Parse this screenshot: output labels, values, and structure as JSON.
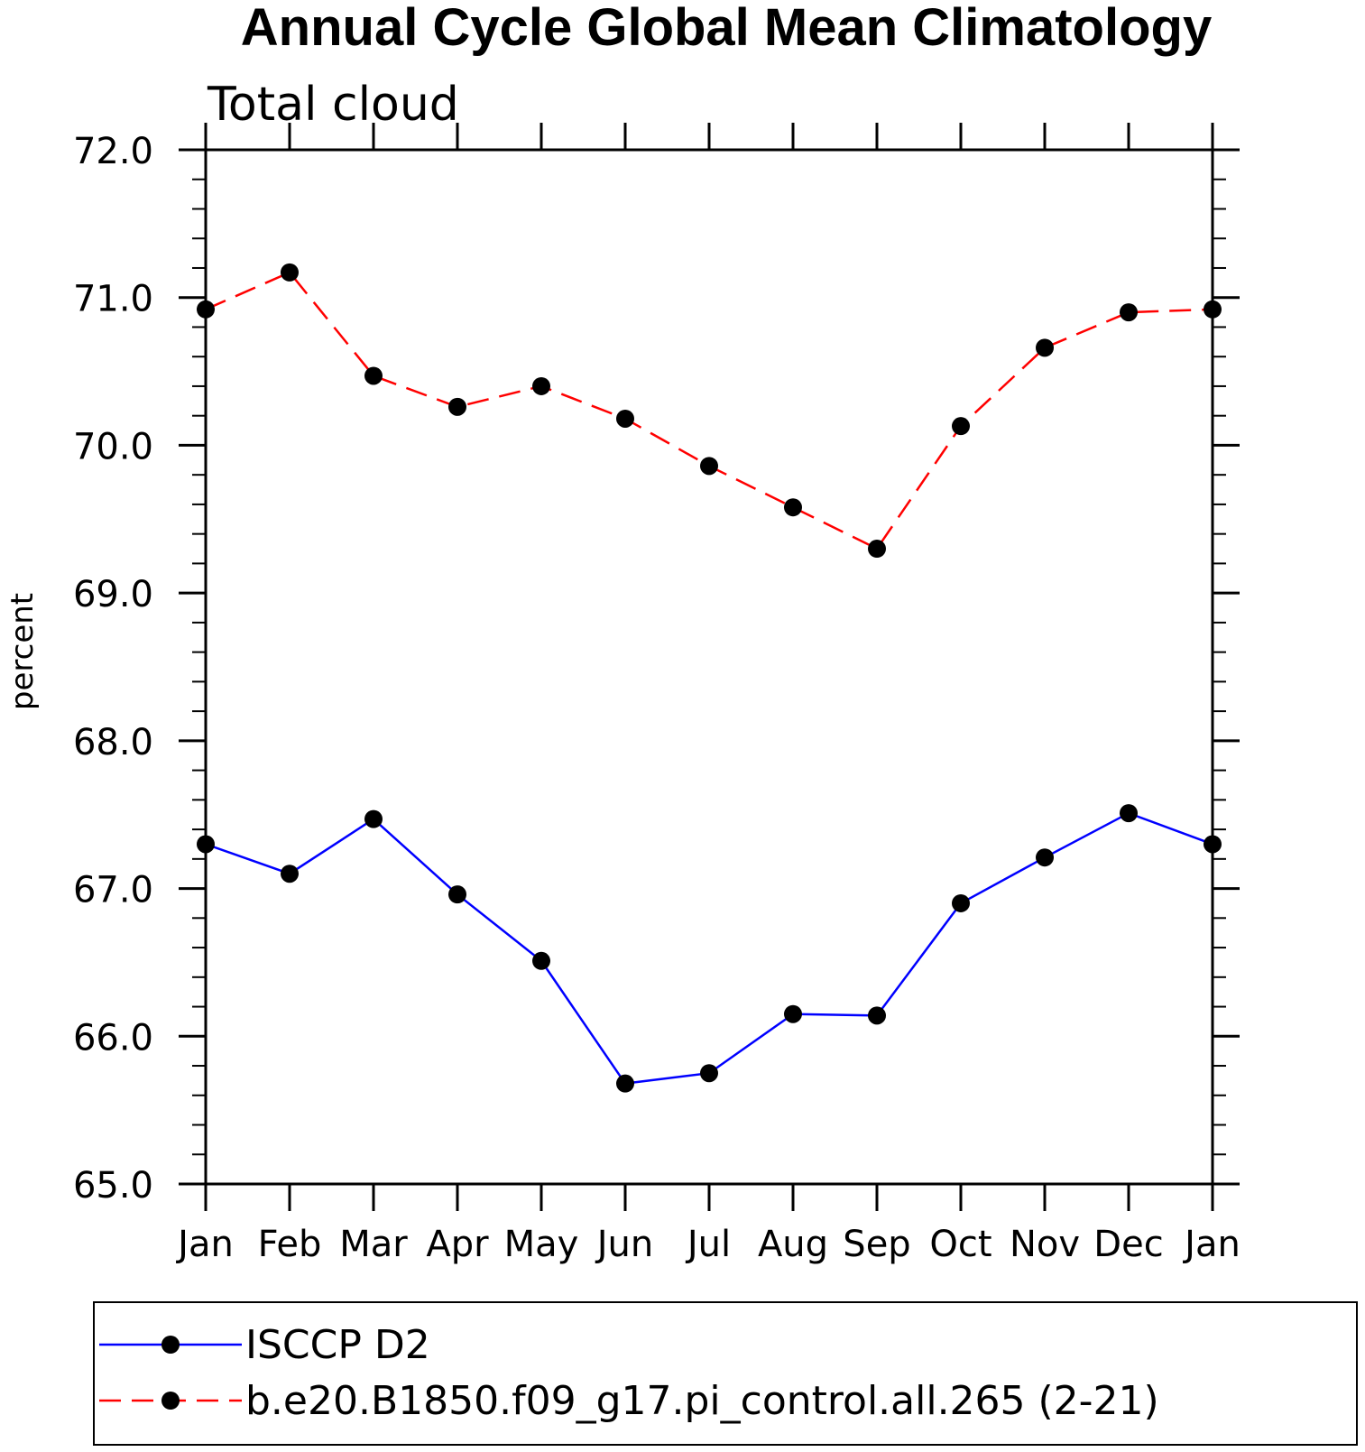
{
  "chart_data": {
    "type": "line",
    "title": "Annual Cycle Global Mean Climatology",
    "subtitle": "Total cloud",
    "xlabel": "",
    "ylabel": "percent",
    "categories": [
      "Jan",
      "Feb",
      "Mar",
      "Apr",
      "May",
      "Jun",
      "Jul",
      "Aug",
      "Sep",
      "Oct",
      "Nov",
      "Dec",
      "Jan"
    ],
    "ylim": [
      65.0,
      72.0
    ],
    "yticks": [
      "65.0",
      "66.0",
      "67.0",
      "68.0",
      "69.0",
      "70.0",
      "71.0",
      "72.0"
    ],
    "grid": false,
    "legend_position": "bottom",
    "series": [
      {
        "name": "ISCCP D2",
        "color": "#0000ff",
        "line_style": "solid",
        "values": [
          67.3,
          67.1,
          67.47,
          66.96,
          66.51,
          65.68,
          65.75,
          66.15,
          66.14,
          66.9,
          67.21,
          67.51,
          67.3
        ]
      },
      {
        "name": "b.e20.B1850.f09_g17.pi_control.all.265 (2-21)",
        "color": "#ff0000",
        "line_style": "dashed",
        "values": [
          70.92,
          71.17,
          70.47,
          70.26,
          70.4,
          70.18,
          69.86,
          69.58,
          69.3,
          70.13,
          70.66,
          70.9,
          70.92
        ]
      }
    ]
  }
}
